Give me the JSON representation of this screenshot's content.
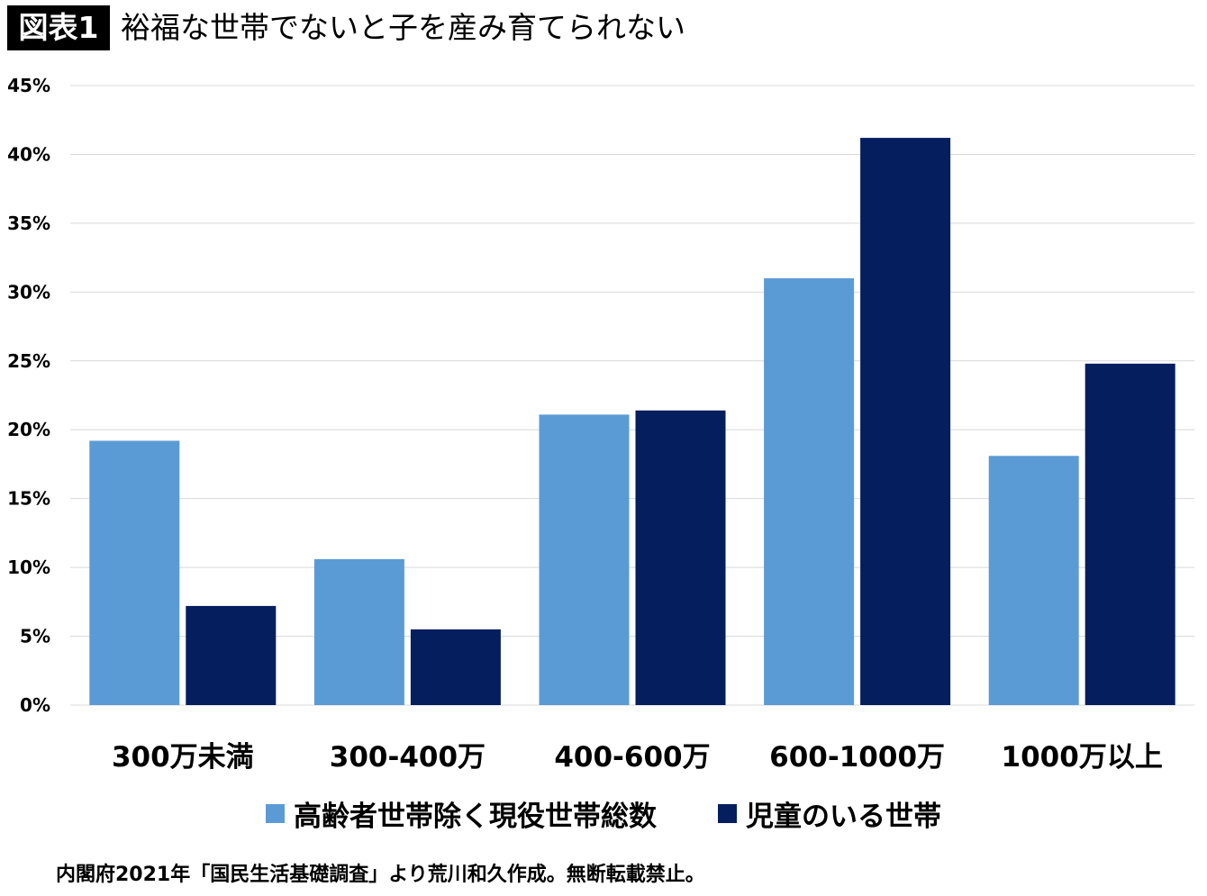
{
  "header": {
    "figure_label": "図表1",
    "title": "裕福な世帯でないと子を産み育てられない"
  },
  "chart_data": {
    "type": "bar",
    "categories": [
      "300万未満",
      "300-400万",
      "400-600万",
      "600-1000万",
      "1000万以上"
    ],
    "series": [
      {
        "name": "高齢者世帯除く現役世帯総数",
        "color": "#5b9bd5",
        "values": [
          19.2,
          10.6,
          21.1,
          31.0,
          18.1
        ]
      },
      {
        "name": "児童のいる世帯",
        "color": "#041e5e",
        "values": [
          7.2,
          5.5,
          21.4,
          41.2,
          24.8
        ]
      }
    ],
    "ylim": [
      0,
      45
    ],
    "yticks": [
      0,
      5,
      10,
      15,
      20,
      25,
      30,
      35,
      40,
      45
    ],
    "ytick_labels": [
      "0%",
      "5%",
      "10%",
      "15%",
      "20%",
      "25%",
      "30%",
      "35%",
      "40%",
      "45%"
    ],
    "grid": true,
    "gridline_color": "#d9d9d9",
    "legend_position": "bottom"
  },
  "footer": {
    "source": "内閣府2021年「国民生活基礎調査」より荒川和久作成。無断転載禁止。"
  }
}
